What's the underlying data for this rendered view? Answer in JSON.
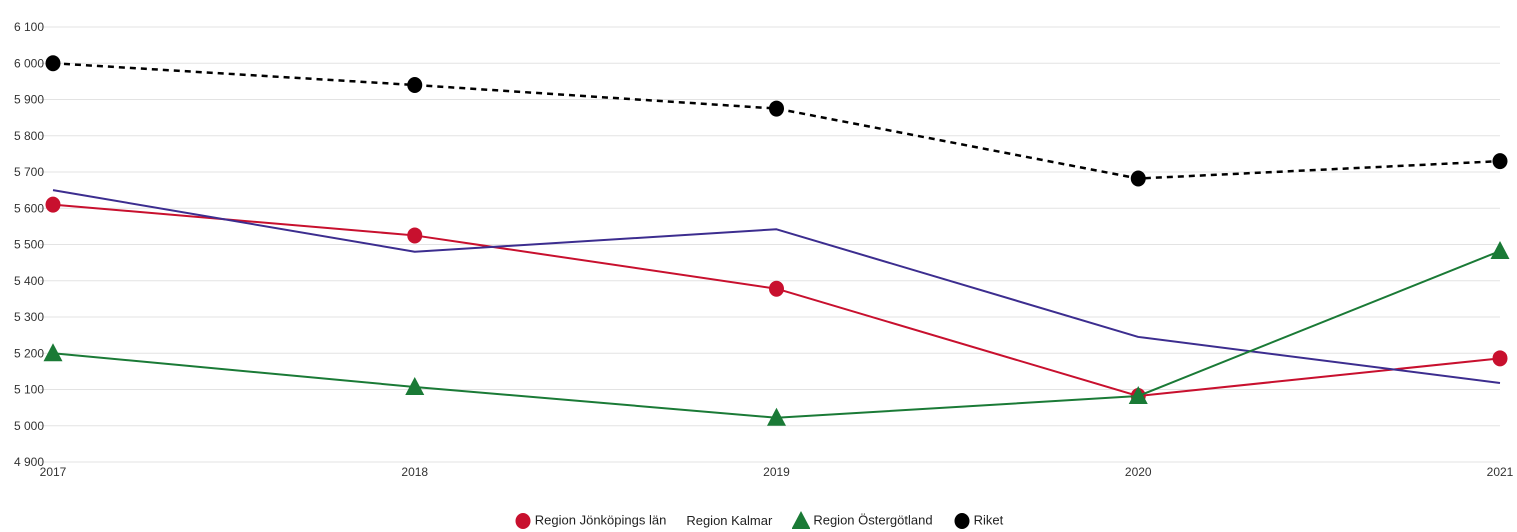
{
  "chart_data": {
    "type": "line",
    "title": "",
    "xlabel": "",
    "ylabel": "",
    "categories": [
      "2017",
      "2018",
      "2019",
      "2020",
      "2021"
    ],
    "ylim": [
      4900,
      6100
    ],
    "yticks": [
      4900,
      5000,
      5100,
      5200,
      5300,
      5400,
      5500,
      5600,
      5700,
      5800,
      5900,
      6000,
      6100
    ],
    "ytick_labels": [
      "4 900",
      "5 000",
      "5 100",
      "5 200",
      "5 300",
      "5 400",
      "5 500",
      "5 600",
      "5 700",
      "5 800",
      "5 900",
      "6 000",
      "6 100"
    ],
    "grid": true,
    "legend_position": "bottom",
    "series": [
      {
        "name": "Region Jönköpings län",
        "values": [
          5610,
          5525,
          5378,
          5082,
          5186
        ],
        "color": "#c8102e",
        "marker": "circle",
        "dash": false
      },
      {
        "name": "Region Kalmar",
        "values": [
          5650,
          5480,
          5542,
          5245,
          5118
        ],
        "color": "#3c2d8f",
        "marker": "none",
        "dash": false
      },
      {
        "name": "Region Östergötland",
        "values": [
          5200,
          5107,
          5022,
          5082,
          5482
        ],
        "color": "#1a7a36",
        "marker": "triangle",
        "dash": false
      },
      {
        "name": "Riket",
        "values": [
          6000,
          5940,
          5875,
          5682,
          5730
        ],
        "color": "#000000",
        "marker": "circle",
        "dash": true
      }
    ]
  }
}
